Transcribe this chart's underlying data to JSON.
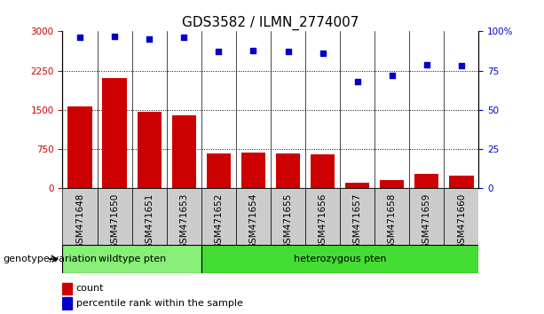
{
  "title": "GDS3582 / ILMN_2774007",
  "categories": [
    "GSM471648",
    "GSM471650",
    "GSM471651",
    "GSM471653",
    "GSM471652",
    "GSM471654",
    "GSM471655",
    "GSM471656",
    "GSM471657",
    "GSM471658",
    "GSM471659",
    "GSM471660"
  ],
  "counts": [
    1570,
    2100,
    1460,
    1400,
    660,
    690,
    660,
    650,
    110,
    160,
    280,
    240
  ],
  "percentiles": [
    96,
    97,
    95,
    96,
    87,
    88,
    87,
    86,
    68,
    72,
    79,
    78
  ],
  "bar_color": "#cc0000",
  "dot_color": "#0000cc",
  "ylim_left": [
    0,
    3000
  ],
  "ylim_right": [
    0,
    100
  ],
  "yticks_left": [
    0,
    750,
    1500,
    2250,
    3000
  ],
  "yticks_right": [
    0,
    25,
    50,
    75,
    100
  ],
  "yticklabels_right": [
    "0",
    "25",
    "50",
    "75",
    "100%"
  ],
  "grid_values": [
    750,
    1500,
    2250
  ],
  "n_wildtype": 4,
  "wildtype_label": "wildtype pten",
  "heterozygous_label": "heterozygous pten",
  "genotype_label": "genotype/variation",
  "legend_count": "count",
  "legend_percentile": "percentile rank within the sample",
  "bg_color_wildtype": "#88ee77",
  "bg_color_heterozygous": "#44dd33",
  "label_box_color": "#cccccc",
  "title_fontsize": 11,
  "tick_fontsize": 7.5,
  "label_fontsize": 8,
  "genotype_fontsize": 8
}
